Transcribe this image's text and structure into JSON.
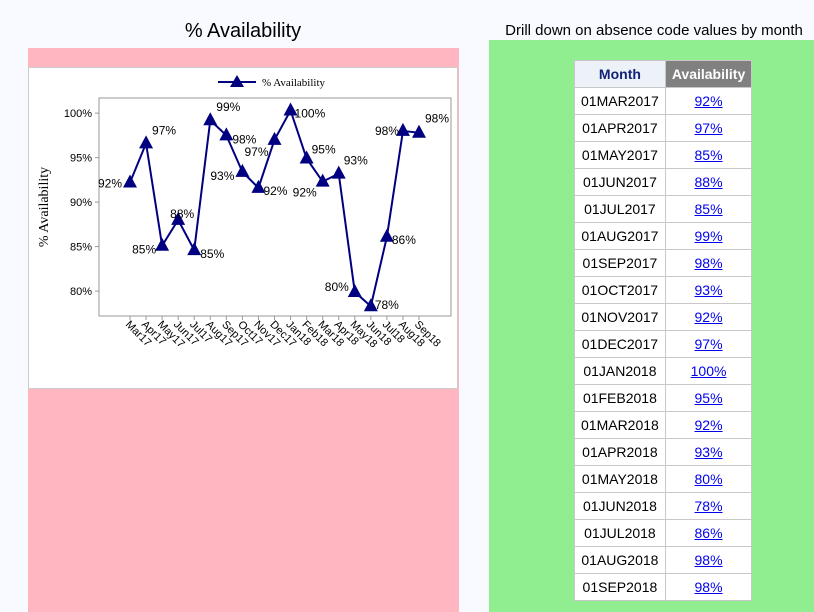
{
  "left_title": "% Availability",
  "right_title": "Drill down on absence code values by month",
  "colors": {
    "line": "#000080",
    "panel_left": "#ffb6c1",
    "panel_right": "#90ee90",
    "header_availability": "#808080"
  },
  "chart_data": {
    "type": "line",
    "title": "",
    "legend": [
      "% Availability"
    ],
    "legend_placement": "top",
    "marker": "triangle",
    "ylabel": "% Availability",
    "xlabel": "",
    "ylim": [
      77.2,
      101.7
    ],
    "yticks": [
      80,
      85,
      90,
      95,
      100
    ],
    "ytick_labels": [
      "80%",
      "85%",
      "90%",
      "95%",
      "100%"
    ],
    "grid": false,
    "categories": [
      "Mar17",
      "Apr17",
      "May17",
      "Jun17",
      "Jul17",
      "Aug17",
      "Sep17",
      "Oct17",
      "Nov17",
      "Dec17",
      "Jan18",
      "Feb18",
      "Mar18",
      "Apr18",
      "May18",
      "Jun18",
      "Jul18",
      "Aug18",
      "Sep18"
    ],
    "series": [
      {
        "name": "% Availability",
        "values": [
          92.2,
          96.6,
          85.1,
          88.0,
          84.6,
          99.2,
          97.5,
          93.4,
          91.6,
          97.0,
          100.3,
          94.9,
          92.3,
          93.2,
          79.9,
          78.3,
          86.1,
          98.0,
          97.8
        ],
        "labels": [
          "92%",
          "97%",
          "85%",
          "88%",
          "85%",
          "99%",
          "98%",
          "93%",
          "92%",
          "97%",
          "100%",
          "95%",
          "92%",
          "93%",
          "80%",
          "78%",
          "86%",
          "98%",
          "98%"
        ]
      }
    ]
  },
  "table": {
    "headers": [
      "Month",
      "Availability"
    ],
    "rows": [
      [
        "01MAR2017",
        "92%"
      ],
      [
        "01APR2017",
        "97%"
      ],
      [
        "01MAY2017",
        "85%"
      ],
      [
        "01JUN2017",
        "88%"
      ],
      [
        "01JUL2017",
        "85%"
      ],
      [
        "01AUG2017",
        "99%"
      ],
      [
        "01SEP2017",
        "98%"
      ],
      [
        "01OCT2017",
        "93%"
      ],
      [
        "01NOV2017",
        "92%"
      ],
      [
        "01DEC2017",
        "97%"
      ],
      [
        "01JAN2018",
        "100%"
      ],
      [
        "01FEB2018",
        "95%"
      ],
      [
        "01MAR2018",
        "92%"
      ],
      [
        "01APR2018",
        "93%"
      ],
      [
        "01MAY2018",
        "80%"
      ],
      [
        "01JUN2018",
        "78%"
      ],
      [
        "01JUL2018",
        "86%"
      ],
      [
        "01AUG2018",
        "98%"
      ],
      [
        "01SEP2018",
        "98%"
      ]
    ]
  }
}
